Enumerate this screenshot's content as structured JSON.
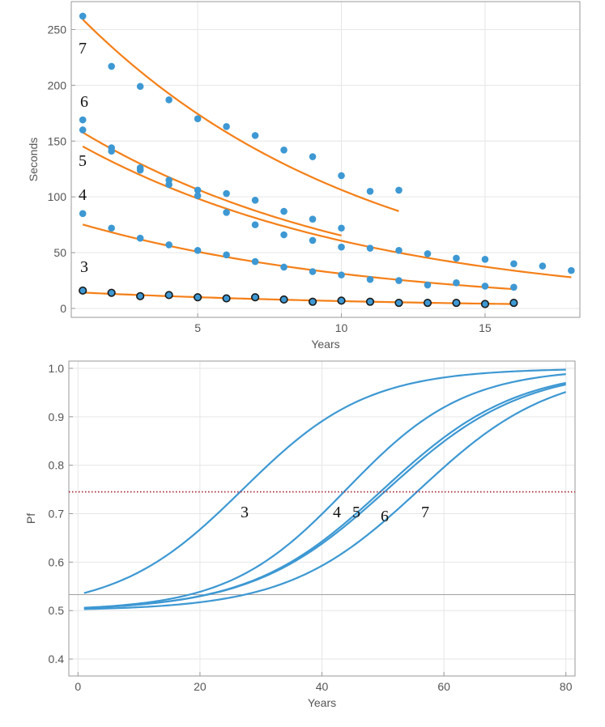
{
  "chart_data": [
    {
      "type": "scatter",
      "title": "",
      "xlabel": "Years",
      "ylabel": "Seconds",
      "xlim": [
        0.6,
        18.3
      ],
      "ylim": [
        -8,
        275
      ],
      "xticks": [
        5,
        10,
        15
      ],
      "yticks": [
        0,
        50,
        100,
        150,
        200,
        250
      ],
      "grid": true,
      "colors": {
        "points": "#3d98d3",
        "fit": "#f57f17",
        "grid": "#e6e6e6",
        "frame": "#9a9a9a"
      },
      "series": [
        {
          "name": "3",
          "label": "3",
          "points": [
            [
              1,
              16
            ],
            [
              2,
              14
            ],
            [
              3,
              11
            ],
            [
              4,
              12
            ],
            [
              5,
              10
            ],
            [
              6,
              9
            ],
            [
              7,
              10
            ],
            [
              8,
              8
            ],
            [
              9,
              6
            ],
            [
              10,
              7
            ],
            [
              11,
              6
            ],
            [
              12,
              5
            ],
            [
              13,
              5
            ],
            [
              14,
              5
            ],
            [
              15,
              4
            ],
            [
              16,
              5
            ]
          ],
          "fit": {
            "a": 15.5,
            "b": 0.086,
            "x_range": [
              1,
              16
            ]
          }
        },
        {
          "name": "4",
          "label": "4",
          "points": [
            [
              1,
              85
            ],
            [
              2,
              72
            ],
            [
              3,
              63
            ],
            [
              4,
              57
            ],
            [
              5,
              52
            ],
            [
              6,
              48
            ],
            [
              7,
              42
            ],
            [
              8,
              37
            ],
            [
              9,
              33
            ],
            [
              10,
              30
            ],
            [
              11,
              26
            ],
            [
              12,
              25
            ],
            [
              13,
              21
            ],
            [
              14,
              23
            ],
            [
              15,
              20
            ],
            [
              16,
              19
            ]
          ],
          "fit": {
            "a": 83,
            "b": 0.098,
            "x_range": [
              1,
              16
            ]
          }
        },
        {
          "name": "5",
          "label": "5",
          "points": [
            [
              1,
              160
            ],
            [
              2,
              141
            ],
            [
              3,
              124
            ],
            [
              4,
              111
            ],
            [
              5,
              101
            ],
            [
              6,
              86
            ],
            [
              7,
              75
            ],
            [
              8,
              66
            ],
            [
              9,
              61
            ],
            [
              10,
              55
            ],
            [
              11,
              54
            ],
            [
              12,
              52
            ],
            [
              13,
              49
            ],
            [
              14,
              45
            ],
            [
              15,
              44
            ],
            [
              16,
              40
            ],
            [
              17,
              38
            ],
            [
              18,
              34
            ]
          ],
          "fit": {
            "a": 160,
            "b": 0.097,
            "x_range": [
              1,
              18
            ]
          }
        },
        {
          "name": "6",
          "label": "6",
          "points": [
            [
              1,
              169
            ],
            [
              2,
              144
            ],
            [
              3,
              126
            ],
            [
              4,
              115
            ],
            [
              5,
              106
            ],
            [
              6,
              103
            ],
            [
              7,
              97
            ],
            [
              8,
              87
            ],
            [
              9,
              80
            ],
            [
              10,
              72
            ]
          ],
          "fit": {
            "a": 174,
            "b": 0.098,
            "x_range": [
              1,
              10
            ]
          }
        },
        {
          "name": "7",
          "label": "7",
          "points": [
            [
              1,
              262
            ],
            [
              2,
              217
            ],
            [
              3,
              199
            ],
            [
              4,
              187
            ],
            [
              5,
              170
            ],
            [
              6,
              163
            ],
            [
              7,
              155
            ],
            [
              8,
              142
            ],
            [
              9,
              136
            ],
            [
              10,
              119
            ],
            [
              11,
              105
            ],
            [
              12,
              106
            ]
          ],
          "fit": {
            "a": 286,
            "b": 0.099,
            "x_range": [
              1,
              12
            ]
          }
        }
      ]
    },
    {
      "type": "line",
      "title": "",
      "xlabel": "Years",
      "ylabel": "Pf",
      "xlim": [
        -1.5,
        81.5
      ],
      "ylim": [
        0.365,
        1.015
      ],
      "xticks": [
        0,
        20,
        40,
        60,
        80
      ],
      "yticks": [
        0.4,
        0.5,
        0.6,
        0.7,
        0.8,
        0.9,
        1.0
      ],
      "ytick_labels": [
        "0.4",
        "0.5",
        "0.6",
        "0.7",
        "0.8",
        "0.9",
        "1.0"
      ],
      "grid": true,
      "colors": {
        "curves": "#3d98d3",
        "threshold": "#a01c2a",
        "baseline": "#a0a0a0",
        "grid": "#e6e6e6",
        "frame": "#9a9a9a"
      },
      "threshold_line": {
        "y": 0.745,
        "style": "dotted"
      },
      "baseline_line": {
        "y": 0.533
      },
      "series": [
        {
          "name": "3",
          "label": "3",
          "curve": {
            "m": 27,
            "s": 10.2,
            "x_range": [
              1,
              80
            ]
          }
        },
        {
          "name": "4",
          "label": "4",
          "curve": {
            "m": 44,
            "s": 9.7,
            "x_range": [
              1,
              80
            ]
          }
        },
        {
          "name": "5",
          "label": "5",
          "curve": {
            "m": 50,
            "s": 10.9,
            "x_range": [
              1,
              80
            ]
          }
        },
        {
          "name": "6",
          "label": "6",
          "curve": {
            "m": 50.7,
            "s": 11.1,
            "x_range": [
              1,
              80
            ]
          }
        },
        {
          "name": "7",
          "label": "7",
          "curve": {
            "m": 56,
            "s": 10.8,
            "x_range": [
              1,
              80
            ]
          }
        }
      ]
    }
  ]
}
